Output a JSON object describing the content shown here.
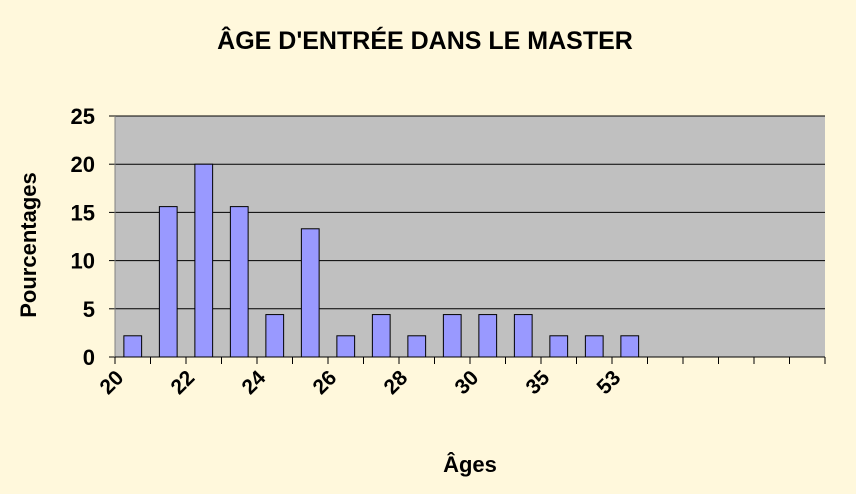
{
  "chart_data": {
    "type": "bar",
    "title": "ÂGE D'ENTRÉE DANS LE MASTER",
    "x_label": "Âges",
    "y_label": "Pourcentages",
    "categories": [
      "20",
      null,
      "22",
      null,
      "24",
      null,
      "26",
      null,
      "28",
      null,
      "30",
      null,
      "35",
      null,
      "53",
      null,
      null,
      null,
      null,
      null
    ],
    "values": [
      2.2,
      15.6,
      20,
      15.6,
      4.4,
      13.3,
      2.2,
      4.4,
      2.2,
      4.4,
      4.4,
      4.4,
      2.2,
      2.2,
      2.2,
      null,
      null,
      null,
      null,
      null
    ],
    "color": "#9999ff",
    "ylim": [
      0,
      25
    ],
    "yticks": [
      0,
      5,
      10,
      15,
      20,
      25
    ],
    "grid": true
  }
}
